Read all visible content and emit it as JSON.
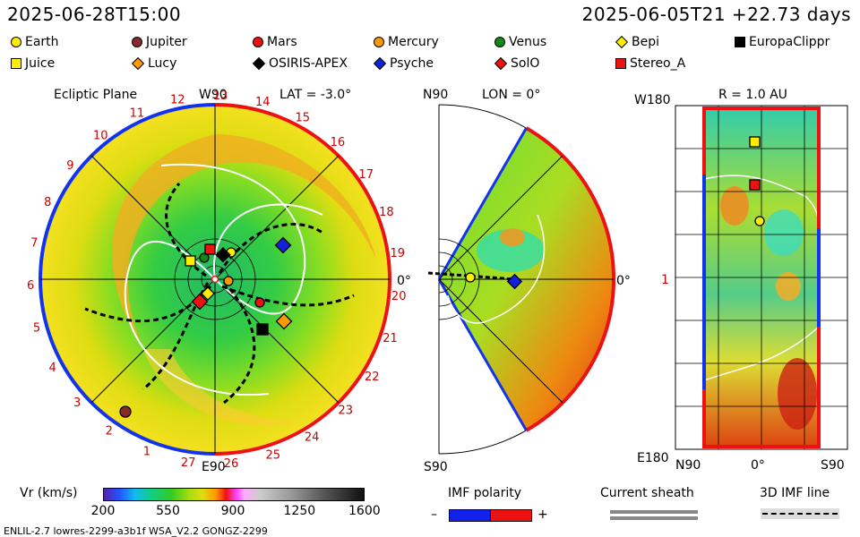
{
  "header": {
    "left": "2025-06-28T15:00",
    "right": "2025-06-05T21 +22.73 days"
  },
  "legend": [
    {
      "name": "Earth",
      "shape": "circle",
      "color": "#ffee00"
    },
    {
      "name": "Jupiter",
      "shape": "circle",
      "color": "#8b2a2a"
    },
    {
      "name": "Mars",
      "shape": "circle",
      "color": "#ee1111"
    },
    {
      "name": "Mercury",
      "shape": "circle",
      "color": "#ff9900"
    },
    {
      "name": "Venus",
      "shape": "circle",
      "color": "#118811"
    },
    {
      "name": "Bepi",
      "shape": "diamond",
      "color": "#ffee00"
    },
    {
      "name": "EuropaClippr",
      "shape": "square",
      "color": "#000000"
    },
    {
      "name": "Juice",
      "shape": "square",
      "color": "#ffee00"
    },
    {
      "name": "Lucy",
      "shape": "diamond",
      "color": "#ff9900"
    },
    {
      "name": "OSIRIS-APEX",
      "shape": "diamond",
      "color": "#000000"
    },
    {
      "name": "Psyche",
      "shape": "diamond",
      "color": "#1122dd"
    },
    {
      "name": "SolO",
      "shape": "diamond",
      "color": "#ee1111"
    },
    {
      "name": "Stereo_A",
      "shape": "square",
      "color": "#ee1111"
    }
  ],
  "panel_ecliptic": {
    "title": "Ecliptic Plane",
    "top_label": "W90",
    "lat_label": "LAT = -3.0°",
    "right_label": "0°",
    "bottom_label": "E90",
    "carrington_ticks": [
      "5",
      "6",
      "7",
      "8",
      "9",
      "10",
      "11",
      "12",
      "13",
      "14",
      "15",
      "16",
      "17",
      "18",
      "19",
      "20",
      "21",
      "22",
      "23",
      "24",
      "25",
      "26",
      "27",
      "1",
      "2",
      "3",
      "4"
    ]
  },
  "panel_meridional": {
    "top_left": "N90",
    "lon_label": "LON = 0°",
    "right_label": "0°",
    "bottom_left": "S90"
  },
  "panel_map": {
    "top_left": "W180",
    "r_label": "R = 1.0 AU",
    "left_mid": "1",
    "bottom_left": "E180",
    "x_left": "N90",
    "x_mid": "0°",
    "x_right": "S90"
  },
  "colorbar": {
    "title": "Vr (km/s)",
    "ticks": [
      "200",
      "550",
      "900",
      "1250",
      "1600"
    ],
    "range": [
      200,
      1600
    ]
  },
  "imf_legend": {
    "title": "IMF polarity",
    "minus": "–",
    "plus": "+"
  },
  "sheath_legend": {
    "title": "Current sheath"
  },
  "imf3d_legend": {
    "title": "3D IMF line"
  },
  "footer": {
    "text": "ENLIL-2.7 lowres-2299-a3b1f WSA_V2.2 GONGZ-2299"
  },
  "chart_data": {
    "type": "heatmap",
    "title": "Ecliptic Plane",
    "quantity": "Vr (km/s)",
    "range": [
      200,
      1600
    ],
    "objects_ecliptic": [
      {
        "name": "Earth",
        "r_au": 1.0,
        "lon_deg": 0
      },
      {
        "name": "Mars",
        "r_au": 0.9,
        "lon_deg": -20
      },
      {
        "name": "Jupiter",
        "r_au": 3.2,
        "lon_deg": -123
      }
    ]
  }
}
